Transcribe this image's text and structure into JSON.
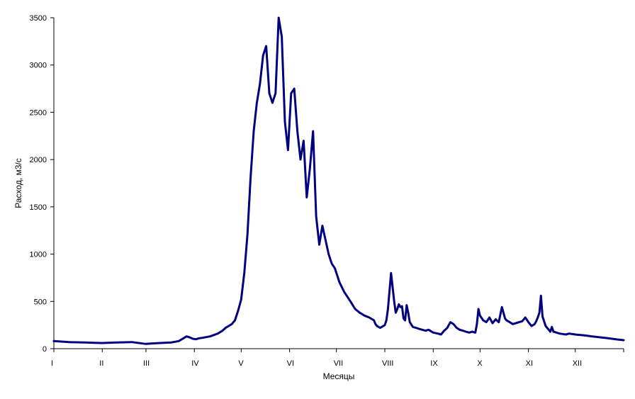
{
  "chart_data": {
    "type": "line",
    "title": "",
    "xlabel": "Месяцы",
    "ylabel": "Расход, м3/с",
    "ylim": [
      0,
      3500
    ],
    "yticks": [
      0,
      500,
      1000,
      1500,
      2000,
      2500,
      3000,
      3500
    ],
    "xlim": [
      0,
      365
    ],
    "grid": false,
    "legend": "none",
    "month_labels": [
      "I",
      "II",
      "III",
      "IV",
      "V",
      "VI",
      "VII",
      "VIII",
      "IX",
      "X",
      "XI",
      "XII"
    ],
    "month_start_days": [
      0,
      31,
      59,
      90,
      120,
      151,
      181,
      212,
      243,
      273,
      304,
      334
    ],
    "series": [
      {
        "color": "#000080",
        "x": [
          0,
          5,
          10,
          20,
          30,
          31,
          40,
          50,
          59,
          62,
          68,
          75,
          80,
          85,
          87,
          89,
          91,
          93,
          95,
          100,
          105,
          108,
          110,
          112,
          114,
          116,
          118,
          120,
          122,
          124,
          126,
          128,
          130,
          132,
          134,
          136,
          138,
          140,
          142,
          144,
          146,
          148,
          150,
          152,
          154,
          156,
          158,
          160,
          162,
          164,
          166,
          168,
          170,
          172,
          174,
          176,
          178,
          180,
          183,
          186,
          190,
          193,
          196,
          199,
          202,
          205,
          206,
          207,
          208,
          209,
          210,
          211,
          212,
          213,
          214,
          216,
          218,
          219,
          220,
          221,
          222,
          223,
          224,
          225,
          226,
          227,
          228,
          230,
          232,
          234,
          236,
          238,
          240,
          243,
          246,
          248,
          250,
          252,
          254,
          256,
          258,
          260,
          262,
          264,
          266,
          268,
          270,
          271,
          272,
          273,
          275,
          277,
          279,
          280,
          281,
          283,
          285,
          287,
          289,
          290,
          291,
          292,
          294,
          296,
          298,
          300,
          302,
          304,
          306,
          308,
          309,
          310,
          311,
          312,
          313,
          315,
          317,
          318,
          319,
          320,
          322,
          324,
          326,
          328,
          330,
          334,
          340,
          345,
          350,
          355,
          360,
          365
        ],
        "y": [
          80,
          75,
          70,
          65,
          60,
          60,
          65,
          70,
          50,
          55,
          60,
          65,
          80,
          130,
          120,
          105,
          100,
          110,
          115,
          130,
          160,
          190,
          220,
          240,
          260,
          300,
          400,
          520,
          800,
          1200,
          1800,
          2300,
          2600,
          2800,
          3100,
          3200,
          2700,
          2600,
          2700,
          3500,
          3300,
          2400,
          2100,
          2700,
          2750,
          2300,
          2000,
          2200,
          1600,
          1900,
          2300,
          1400,
          1100,
          1300,
          1150,
          1000,
          900,
          850,
          700,
          600,
          500,
          420,
          380,
          350,
          330,
          300,
          260,
          240,
          230,
          220,
          230,
          240,
          250,
          300,
          420,
          800,
          500,
          380,
          420,
          470,
          440,
          450,
          320,
          300,
          460,
          380,
          280,
          230,
          220,
          210,
          200,
          190,
          200,
          170,
          160,
          150,
          190,
          220,
          280,
          260,
          220,
          200,
          190,
          180,
          170,
          180,
          170,
          260,
          420,
          350,
          300,
          280,
          330,
          300,
          270,
          310,
          280,
          440,
          320,
          300,
          290,
          280,
          260,
          270,
          280,
          290,
          330,
          280,
          240,
          260,
          290,
          330,
          380,
          560,
          340,
          240,
          200,
          180,
          230,
          180,
          170,
          160,
          155,
          150,
          160,
          150,
          140,
          130,
          120,
          110,
          100,
          90
        ]
      }
    ]
  }
}
